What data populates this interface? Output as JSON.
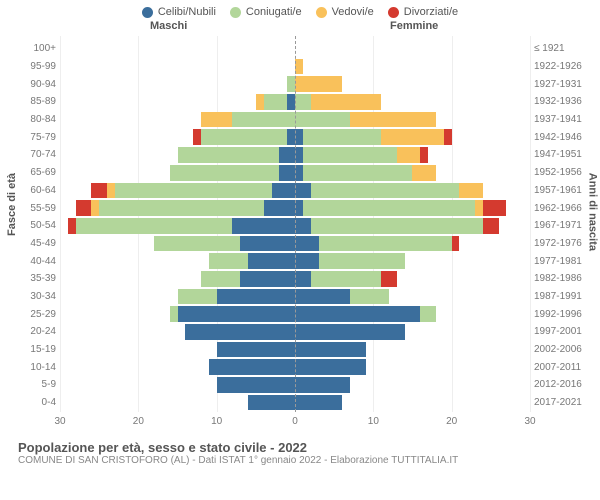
{
  "legend": {
    "items": [
      {
        "label": "Celibi/Nubili",
        "color": "#3b6e9c"
      },
      {
        "label": "Coniugati/e",
        "color": "#b2d69a"
      },
      {
        "label": "Vedovi/e",
        "color": "#f9c15b"
      },
      {
        "label": "Divorziati/e",
        "color": "#d43a2f"
      }
    ]
  },
  "headers": {
    "left": "Maschi",
    "right": "Femmine"
  },
  "axis_titles": {
    "left": "Fasce di età",
    "right": "Anni di nascita"
  },
  "x_axis": {
    "max": 30,
    "ticks": [
      30,
      20,
      10,
      0,
      10,
      20,
      30
    ]
  },
  "colors": {
    "single": "#3b6e9c",
    "married": "#b2d69a",
    "widow": "#f9c15b",
    "divorce": "#d43a2f",
    "grid": "#eeeeee",
    "center": "#999999"
  },
  "rows": [
    {
      "age": "100+",
      "birth": "≤ 1921",
      "m": {
        "s": 0,
        "c": 0,
        "w": 0,
        "d": 0
      },
      "f": {
        "s": 0,
        "c": 0,
        "w": 0,
        "d": 0
      }
    },
    {
      "age": "95-99",
      "birth": "1922-1926",
      "m": {
        "s": 0,
        "c": 0,
        "w": 0,
        "d": 0
      },
      "f": {
        "s": 0,
        "c": 0,
        "w": 1,
        "d": 0
      }
    },
    {
      "age": "90-94",
      "birth": "1927-1931",
      "m": {
        "s": 0,
        "c": 1,
        "w": 0,
        "d": 0
      },
      "f": {
        "s": 0,
        "c": 0,
        "w": 6,
        "d": 0
      }
    },
    {
      "age": "85-89",
      "birth": "1932-1936",
      "m": {
        "s": 1,
        "c": 3,
        "w": 1,
        "d": 0
      },
      "f": {
        "s": 0,
        "c": 2,
        "w": 9,
        "d": 0
      }
    },
    {
      "age": "80-84",
      "birth": "1937-1941",
      "m": {
        "s": 0,
        "c": 8,
        "w": 4,
        "d": 0
      },
      "f": {
        "s": 0,
        "c": 7,
        "w": 11,
        "d": 0
      }
    },
    {
      "age": "75-79",
      "birth": "1942-1946",
      "m": {
        "s": 1,
        "c": 11,
        "w": 0,
        "d": 1
      },
      "f": {
        "s": 1,
        "c": 10,
        "w": 8,
        "d": 1
      }
    },
    {
      "age": "70-74",
      "birth": "1947-1951",
      "m": {
        "s": 2,
        "c": 13,
        "w": 0,
        "d": 0
      },
      "f": {
        "s": 1,
        "c": 12,
        "w": 3,
        "d": 1
      }
    },
    {
      "age": "65-69",
      "birth": "1952-1956",
      "m": {
        "s": 2,
        "c": 14,
        "w": 0,
        "d": 0
      },
      "f": {
        "s": 1,
        "c": 14,
        "w": 3,
        "d": 0
      }
    },
    {
      "age": "60-64",
      "birth": "1957-1961",
      "m": {
        "s": 3,
        "c": 20,
        "w": 1,
        "d": 2
      },
      "f": {
        "s": 2,
        "c": 19,
        "w": 3,
        "d": 0
      }
    },
    {
      "age": "55-59",
      "birth": "1962-1966",
      "m": {
        "s": 4,
        "c": 21,
        "w": 1,
        "d": 2
      },
      "f": {
        "s": 1,
        "c": 22,
        "w": 1,
        "d": 3
      }
    },
    {
      "age": "50-54",
      "birth": "1967-1971",
      "m": {
        "s": 8,
        "c": 20,
        "w": 0,
        "d": 1
      },
      "f": {
        "s": 2,
        "c": 22,
        "w": 0,
        "d": 2
      }
    },
    {
      "age": "45-49",
      "birth": "1972-1976",
      "m": {
        "s": 7,
        "c": 11,
        "w": 0,
        "d": 0
      },
      "f": {
        "s": 3,
        "c": 17,
        "w": 0,
        "d": 1
      }
    },
    {
      "age": "40-44",
      "birth": "1977-1981",
      "m": {
        "s": 6,
        "c": 5,
        "w": 0,
        "d": 0
      },
      "f": {
        "s": 3,
        "c": 11,
        "w": 0,
        "d": 0
      }
    },
    {
      "age": "35-39",
      "birth": "1982-1986",
      "m": {
        "s": 7,
        "c": 5,
        "w": 0,
        "d": 0
      },
      "f": {
        "s": 2,
        "c": 9,
        "w": 0,
        "d": 2
      }
    },
    {
      "age": "30-34",
      "birth": "1987-1991",
      "m": {
        "s": 10,
        "c": 5,
        "w": 0,
        "d": 0
      },
      "f": {
        "s": 7,
        "c": 5,
        "w": 0,
        "d": 0
      }
    },
    {
      "age": "25-29",
      "birth": "1992-1996",
      "m": {
        "s": 15,
        "c": 1,
        "w": 0,
        "d": 0
      },
      "f": {
        "s": 16,
        "c": 2,
        "w": 0,
        "d": 0
      }
    },
    {
      "age": "20-24",
      "birth": "1997-2001",
      "m": {
        "s": 14,
        "c": 0,
        "w": 0,
        "d": 0
      },
      "f": {
        "s": 14,
        "c": 0,
        "w": 0,
        "d": 0
      }
    },
    {
      "age": "15-19",
      "birth": "2002-2006",
      "m": {
        "s": 10,
        "c": 0,
        "w": 0,
        "d": 0
      },
      "f": {
        "s": 9,
        "c": 0,
        "w": 0,
        "d": 0
      }
    },
    {
      "age": "10-14",
      "birth": "2007-2011",
      "m": {
        "s": 11,
        "c": 0,
        "w": 0,
        "d": 0
      },
      "f": {
        "s": 9,
        "c": 0,
        "w": 0,
        "d": 0
      }
    },
    {
      "age": "5-9",
      "birth": "2012-2016",
      "m": {
        "s": 10,
        "c": 0,
        "w": 0,
        "d": 0
      },
      "f": {
        "s": 7,
        "c": 0,
        "w": 0,
        "d": 0
      }
    },
    {
      "age": "0-4",
      "birth": "2017-2021",
      "m": {
        "s": 6,
        "c": 0,
        "w": 0,
        "d": 0
      },
      "f": {
        "s": 6,
        "c": 0,
        "w": 0,
        "d": 0
      }
    }
  ],
  "footer": {
    "title": "Popolazione per età, sesso e stato civile - 2022",
    "sub": "COMUNE DI SAN CRISTOFORO (AL) - Dati ISTAT 1° gennaio 2022 - Elaborazione TUTTITALIA.IT"
  }
}
